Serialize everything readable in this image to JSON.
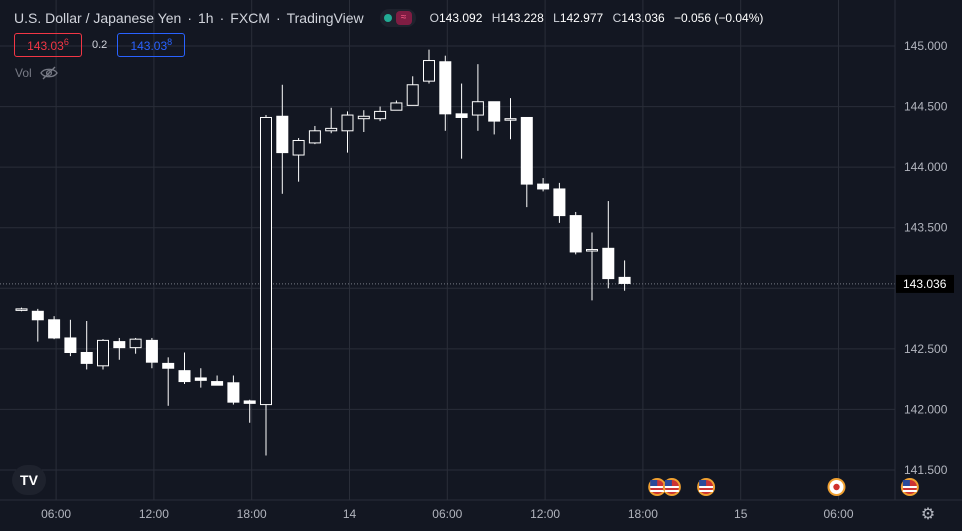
{
  "header": {
    "symbol": "U.S. Dollar / Japanese Yen",
    "interval": "1h",
    "broker": "FXCM",
    "platform": "TradingView",
    "ohlc": {
      "open_label": "O",
      "open": "143.092",
      "high_label": "H",
      "high": "143.228",
      "low_label": "L",
      "low": "142.977",
      "close_label": "C",
      "close": "143.036",
      "change": "−0.056 (−0.04%)"
    }
  },
  "trade": {
    "sell_main": "143.03",
    "sell_sup": "6",
    "spread": "0.2",
    "buy_main": "143.03",
    "buy_sup": "8"
  },
  "volume_label": "Vol",
  "logo_text": "TV",
  "icons": {
    "eye_off": "eye-off-icon",
    "settings": "gear-icon",
    "market_status": "market-open-icon"
  },
  "colors": {
    "background": "#131722",
    "grid": "#2a2e39",
    "candle": "#ffffff",
    "text": "#d1d4dc",
    "axis_text": "#b2b5be",
    "sell": "#f23645",
    "buy": "#2962ff"
  },
  "chart_data": {
    "type": "candlestick",
    "title": "U.S. Dollar / Japanese Yen · 1h · FXCM",
    "ylim": [
      141.35,
      145.2
    ],
    "y_ticks": [
      141.5,
      142.0,
      142.5,
      143.0,
      143.5,
      144.0,
      144.5,
      145.0
    ],
    "y_tick_labels": [
      "141.500",
      "142.000",
      "142.500",
      "143.000",
      "143.500",
      "144.000",
      "144.500",
      "145.000"
    ],
    "last_price": "143.036",
    "last_price_value": 143.036,
    "x_labels": [
      "06:00",
      "12:00",
      "18:00",
      "14",
      "06:00",
      "12:00",
      "18:00",
      "15",
      "06:00"
    ],
    "x_label_bars": [
      2,
      8,
      14,
      20,
      26,
      32,
      38,
      44,
      50
    ],
    "candles": [
      {
        "o": 142.82,
        "h": 142.84,
        "l": 142.81,
        "c": 142.83
      },
      {
        "o": 142.81,
        "h": 142.83,
        "l": 142.56,
        "c": 142.74
      },
      {
        "o": 142.74,
        "h": 142.77,
        "l": 142.58,
        "c": 142.59
      },
      {
        "o": 142.59,
        "h": 142.74,
        "l": 142.44,
        "c": 142.47
      },
      {
        "o": 142.47,
        "h": 142.73,
        "l": 142.33,
        "c": 142.38
      },
      {
        "o": 142.36,
        "h": 142.58,
        "l": 142.33,
        "c": 142.57
      },
      {
        "o": 142.56,
        "h": 142.59,
        "l": 142.41,
        "c": 142.51
      },
      {
        "o": 142.51,
        "h": 142.59,
        "l": 142.46,
        "c": 142.58
      },
      {
        "o": 142.57,
        "h": 142.59,
        "l": 142.34,
        "c": 142.39
      },
      {
        "o": 142.38,
        "h": 142.43,
        "l": 142.03,
        "c": 142.34
      },
      {
        "o": 142.32,
        "h": 142.47,
        "l": 142.21,
        "c": 142.23
      },
      {
        "o": 142.26,
        "h": 142.34,
        "l": 142.18,
        "c": 142.24
      },
      {
        "o": 142.23,
        "h": 142.28,
        "l": 142.2,
        "c": 142.2
      },
      {
        "o": 142.22,
        "h": 142.28,
        "l": 142.04,
        "c": 142.06
      },
      {
        "o": 142.07,
        "h": 142.08,
        "l": 141.89,
        "c": 142.05
      },
      {
        "o": 142.04,
        "h": 144.43,
        "l": 141.62,
        "c": 144.41
      },
      {
        "o": 144.42,
        "h": 144.68,
        "l": 143.78,
        "c": 144.12
      },
      {
        "o": 144.1,
        "h": 144.24,
        "l": 143.88,
        "c": 144.22
      },
      {
        "o": 144.2,
        "h": 144.34,
        "l": 144.19,
        "c": 144.3
      },
      {
        "o": 144.3,
        "h": 144.49,
        "l": 144.28,
        "c": 144.32
      },
      {
        "o": 144.3,
        "h": 144.46,
        "l": 144.12,
        "c": 144.43
      },
      {
        "o": 144.4,
        "h": 144.47,
        "l": 144.29,
        "c": 144.42
      },
      {
        "o": 144.4,
        "h": 144.5,
        "l": 144.38,
        "c": 144.46
      },
      {
        "o": 144.47,
        "h": 144.55,
        "l": 144.48,
        "c": 144.53
      },
      {
        "o": 144.51,
        "h": 144.75,
        "l": 144.52,
        "c": 144.68
      },
      {
        "o": 144.71,
        "h": 144.97,
        "l": 144.69,
        "c": 144.88
      },
      {
        "o": 144.87,
        "h": 144.92,
        "l": 144.3,
        "c": 144.44
      },
      {
        "o": 144.44,
        "h": 144.69,
        "l": 144.07,
        "c": 144.41
      },
      {
        "o": 144.43,
        "h": 144.85,
        "l": 144.3,
        "c": 144.54
      },
      {
        "o": 144.54,
        "h": 144.54,
        "l": 144.27,
        "c": 144.38
      },
      {
        "o": 144.39,
        "h": 144.57,
        "l": 144.23,
        "c": 144.4
      },
      {
        "o": 144.41,
        "h": 144.41,
        "l": 143.67,
        "c": 143.86
      },
      {
        "o": 143.86,
        "h": 143.91,
        "l": 143.8,
        "c": 143.82
      },
      {
        "o": 143.82,
        "h": 143.87,
        "l": 143.54,
        "c": 143.6
      },
      {
        "o": 143.6,
        "h": 143.63,
        "l": 143.28,
        "c": 143.3
      },
      {
        "o": 143.32,
        "h": 143.46,
        "l": 142.9,
        "c": 143.32
      },
      {
        "o": 143.33,
        "h": 143.72,
        "l": 143.0,
        "c": 143.08
      },
      {
        "o": 143.09,
        "h": 143.23,
        "l": 142.98,
        "c": 143.04
      }
    ],
    "event_markers": [
      {
        "bar": 39.0,
        "type": "flag-us"
      },
      {
        "bar": 39.9,
        "type": "flag-us"
      },
      {
        "bar": 42.0,
        "type": "flag-us"
      },
      {
        "bar": 50.0,
        "type": "flag-jp"
      },
      {
        "bar": 54.5,
        "type": "flag-us-partial"
      }
    ]
  }
}
